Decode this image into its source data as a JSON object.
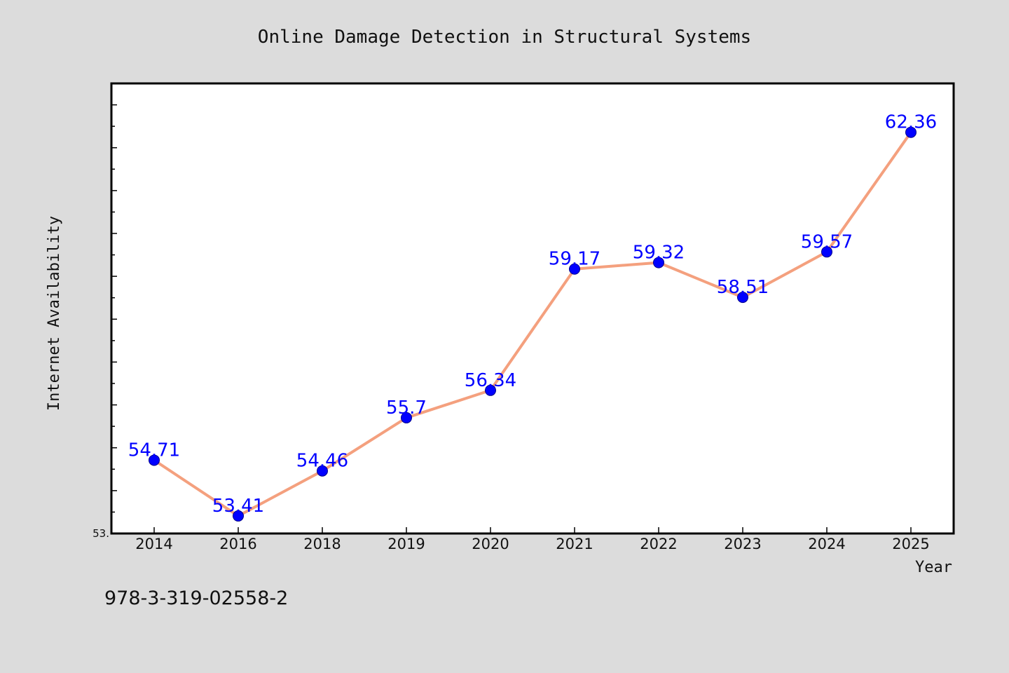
{
  "chart_data": {
    "type": "line",
    "title": "Online Damage Detection in Structural Systems",
    "xlabel": "Year",
    "ylabel": "Internet Availability",
    "categories": [
      "2014",
      "2016",
      "2018",
      "2019",
      "2020",
      "2021",
      "2022",
      "2023",
      "2024",
      "2025"
    ],
    "series": [
      {
        "values": [
          54.71,
          53.41,
          54.46,
          55.7,
          56.34,
          59.17,
          59.32,
          58.51,
          59.57,
          62.36
        ],
        "data_labels": [
          "54.71",
          "53.41",
          "54.46",
          "55.7",
          "56.34",
          "59.17",
          "59.32",
          "58.51",
          "59.57",
          "62.36"
        ]
      }
    ],
    "ylim": [
      53.0,
      63.5
    ],
    "yticks_labeled": [
      "53."
    ],
    "grid": false,
    "legend": "none",
    "colors": {
      "line": "#f4a07e",
      "marker": "#0000ff",
      "label": "#0000ff",
      "plot_bg": "#ffffff",
      "page_bg": "#dcdcdc"
    }
  },
  "footer_text": "978-3-319-02558-2"
}
